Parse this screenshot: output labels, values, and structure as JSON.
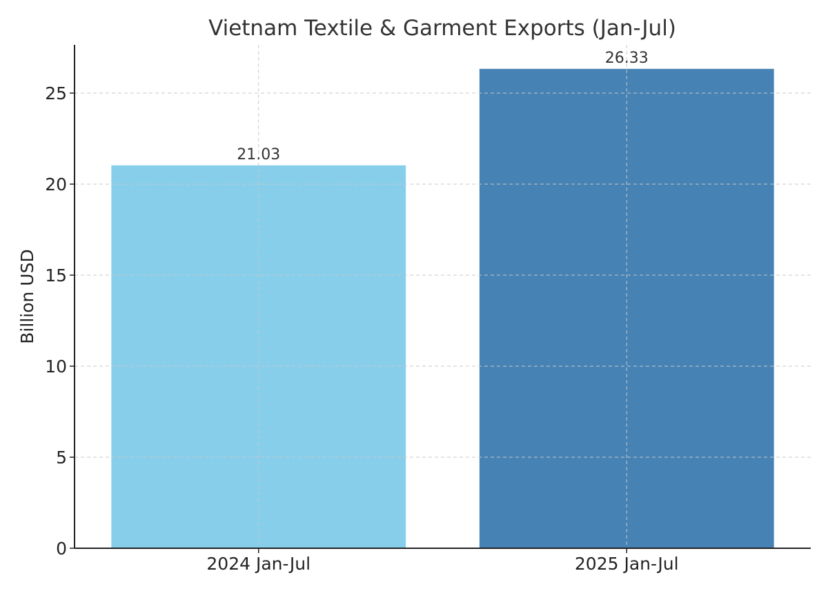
{
  "chart_data": {
    "type": "bar",
    "title": "Vietnam Textile & Garment Exports (Jan-Jul)",
    "xlabel": "",
    "ylabel": "Billion USD",
    "categories": [
      "2024 Jan-Jul",
      "2025 Jan-Jul"
    ],
    "values": [
      21.03,
      26.33
    ],
    "value_labels": [
      "21.03",
      "26.33"
    ],
    "colors": [
      "#87CEEB",
      "#4682B4"
    ],
    "ylim": [
      0,
      27.65
    ],
    "yticks": [
      0,
      5,
      10,
      15,
      20,
      25
    ],
    "grid": true,
    "grid_style": "dashed"
  }
}
